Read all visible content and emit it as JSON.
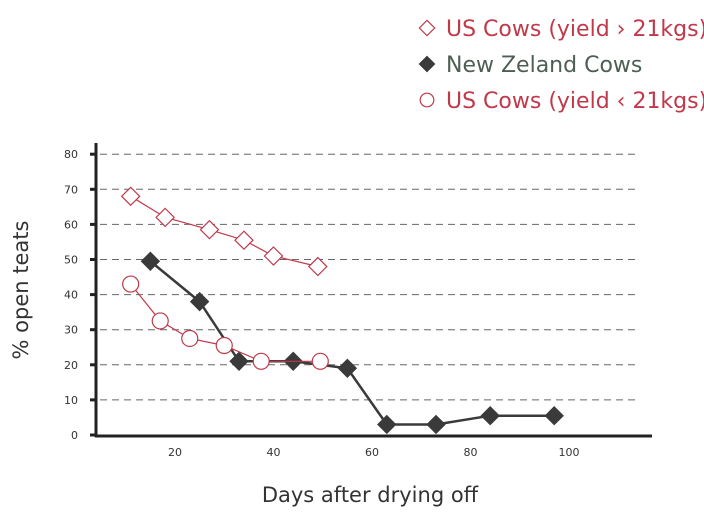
{
  "chart_data": {
    "type": "line",
    "title": "",
    "xlabel": "Days after drying off",
    "ylabel": "% open teats",
    "xlim": [
      0,
      115
    ],
    "ylim": [
      0,
      80
    ],
    "xticks": [
      20,
      40,
      60,
      80,
      100
    ],
    "yticks": [
      0,
      10,
      20,
      30,
      40,
      50,
      60,
      70,
      80
    ],
    "grid": "horizontal dashed",
    "legend_position": "top-right",
    "series": [
      {
        "name": "US Cows (yield › 21kgs)",
        "marker": "diamond-open",
        "color": "#c0394b",
        "legend_color": "#c0394b",
        "x": [
          11,
          18,
          27,
          34,
          40,
          49
        ],
        "y": [
          68,
          62,
          58.5,
          55.5,
          51,
          48
        ]
      },
      {
        "name": "New Zeland Cows",
        "marker": "diamond-filled",
        "color": "#3a3a3a",
        "legend_color": "#4d5f55",
        "x": [
          15,
          25,
          33,
          44,
          55,
          63,
          73,
          84,
          97
        ],
        "y": [
          49.5,
          38,
          21,
          21,
          19,
          3,
          3,
          5.5,
          5.5
        ]
      },
      {
        "name": "US Cows (yield ‹ 21kgs)",
        "marker": "circle-open",
        "color": "#c0394b",
        "legend_color": "#c0394b",
        "x": [
          11,
          17,
          23,
          30,
          37.5,
          49.5
        ],
        "y": [
          43,
          32.5,
          27.5,
          25.5,
          21,
          21
        ]
      }
    ]
  }
}
